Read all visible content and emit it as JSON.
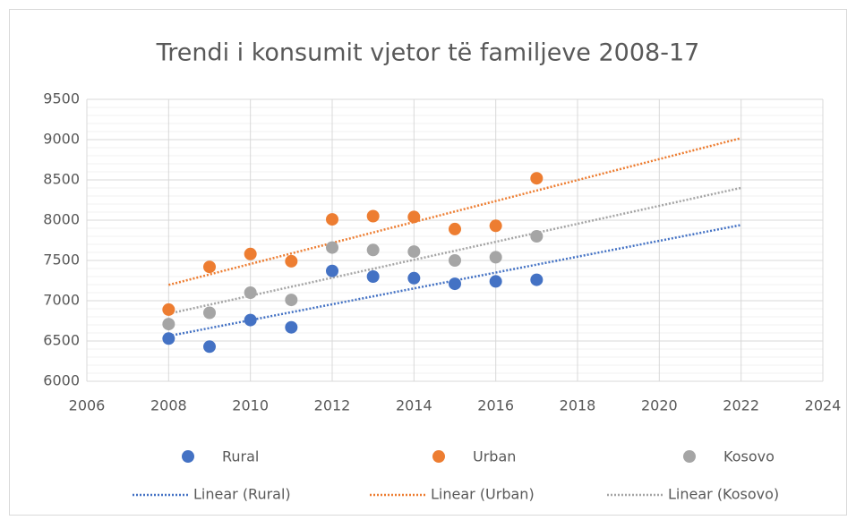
{
  "chart_data": {
    "type": "scatter",
    "title": "Trendi i konsumit vjetor të familjeve 2008-17",
    "x": [
      2008,
      2009,
      2010,
      2011,
      2012,
      2013,
      2014,
      2015,
      2016,
      2017
    ],
    "series": [
      {
        "name": "Rural",
        "color": "#4472c4",
        "trendline_name": "Linear (Rural)",
        "values": [
          6530,
          6430,
          6760,
          6670,
          7370,
          7300,
          7280,
          7210,
          7240,
          7260
        ]
      },
      {
        "name": "Urban",
        "color": "#ed7d31",
        "trendline_name": "Linear (Urban)",
        "values": [
          6890,
          7420,
          7580,
          7490,
          8010,
          8050,
          8040,
          7890,
          7930,
          8520
        ]
      },
      {
        "name": "Kosovo",
        "color": "#a5a5a5",
        "trendline_name": "Linear (Kosovo)",
        "values": [
          6710,
          6850,
          7100,
          7010,
          7660,
          7630,
          7610,
          7500,
          7540,
          7800
        ]
      }
    ],
    "trendline": {
      "type": "linear",
      "forecast_forward": 5
    },
    "xlim": [
      2006,
      2024
    ],
    "xticks": [
      2006,
      2008,
      2010,
      2012,
      2014,
      2016,
      2018,
      2020,
      2022,
      2024
    ],
    "ylim": [
      6000,
      9500
    ],
    "yticks": [
      6000,
      6500,
      7000,
      7500,
      8000,
      8500,
      9000,
      9500
    ],
    "grid": true,
    "minor_divisions": 5,
    "legend": "bottom"
  }
}
